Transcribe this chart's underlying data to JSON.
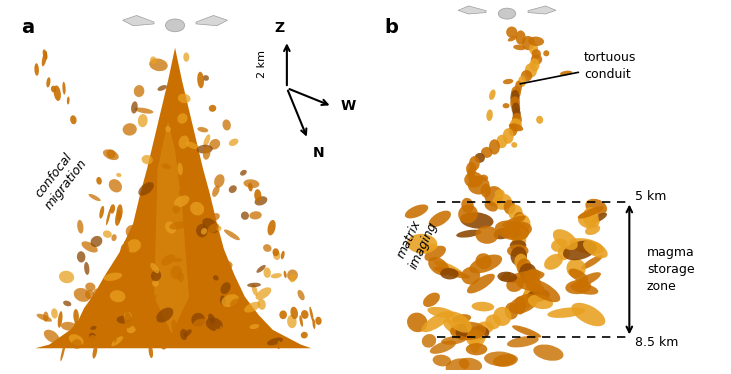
{
  "bg_color": "#ffffff",
  "label_a": "a",
  "label_b": "b",
  "confocal_text": "confocal\nmigration",
  "tortuous_text": "tortuous\nconduit",
  "matrix_text": "matrix\nimaging",
  "magma_text": "magma\nstorage\nzone",
  "km5_text": "5 km",
  "km85_text": "8.5 km",
  "scale_text": "2 km",
  "z_label": "Z",
  "w_label": "W",
  "n_label": "N",
  "volcano_color": "#c97000",
  "volcano_highlight": "#e8a020",
  "volcano_shadow": "#8b4500",
  "text_color": "#000000",
  "figsize": [
    7.31,
    3.74
  ]
}
